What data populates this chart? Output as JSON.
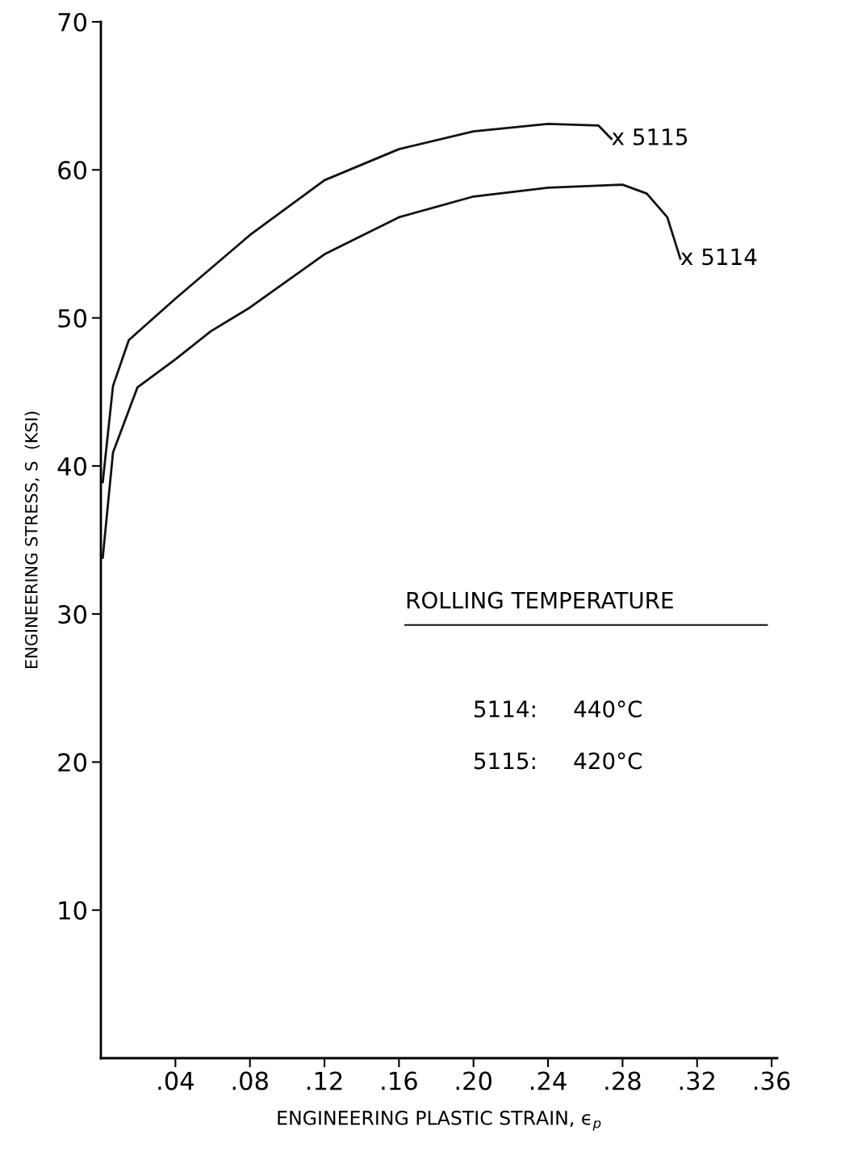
{
  "chart_data": {
    "type": "line",
    "xlabel": "ENGINEERING PLASTIC STRAIN, ϵ$_{p}$",
    "ylabel": "ENGINEERING STRESS, S  (KSI)",
    "xlim": [
      0,
      0.363
    ],
    "ylim": [
      0,
      70
    ],
    "xticks": [
      {
        "value": 0.04,
        "label": ".04"
      },
      {
        "value": 0.08,
        "label": ".08"
      },
      {
        "value": 0.12,
        "label": ".12"
      },
      {
        "value": 0.16,
        "label": ".16"
      },
      {
        "value": 0.2,
        "label": ".20"
      },
      {
        "value": 0.24,
        "label": ".24"
      },
      {
        "value": 0.28,
        "label": ".28"
      },
      {
        "value": 0.32,
        "label": ".32"
      },
      {
        "value": 0.36,
        "label": ".36"
      }
    ],
    "yticks": [
      10,
      20,
      30,
      40,
      50,
      60,
      70
    ],
    "series": [
      {
        "color": "#111111",
        "x": [
          0.001,
          0.0065,
          0.015,
          0.04,
          0.08,
          0.12,
          0.16,
          0.2,
          0.24,
          0.267,
          0.274
        ],
        "values": [
          38.9,
          45.4,
          48.5,
          51.3,
          55.6,
          59.3,
          61.4,
          62.6,
          63.1,
          63.0,
          62.1
        ]
      },
      {
        "color": "#111111",
        "x": [
          0.001,
          0.0065,
          0.0196,
          0.04,
          0.059,
          0.08,
          0.12,
          0.16,
          0.2,
          0.24,
          0.28,
          0.293,
          0.304,
          0.311
        ],
        "values": [
          33.8,
          40.9,
          45.3,
          47.2,
          49.1,
          50.7,
          54.3,
          56.8,
          58.2,
          58.8,
          59.0,
          58.4,
          56.8,
          54.0
        ]
      }
    ],
    "annotations": [
      {
        "text": "x 5115",
        "x": 0.274,
        "y": 62.1
      },
      {
        "text": "x 5114",
        "x": 0.311,
        "y": 54.0
      },
      "ROLLING TEMPERATURE",
      "5114:     440°C",
      "5115:     420°C"
    ],
    "grid": false,
    "legend": false,
    "marker": "none",
    "line_style": "solid"
  }
}
